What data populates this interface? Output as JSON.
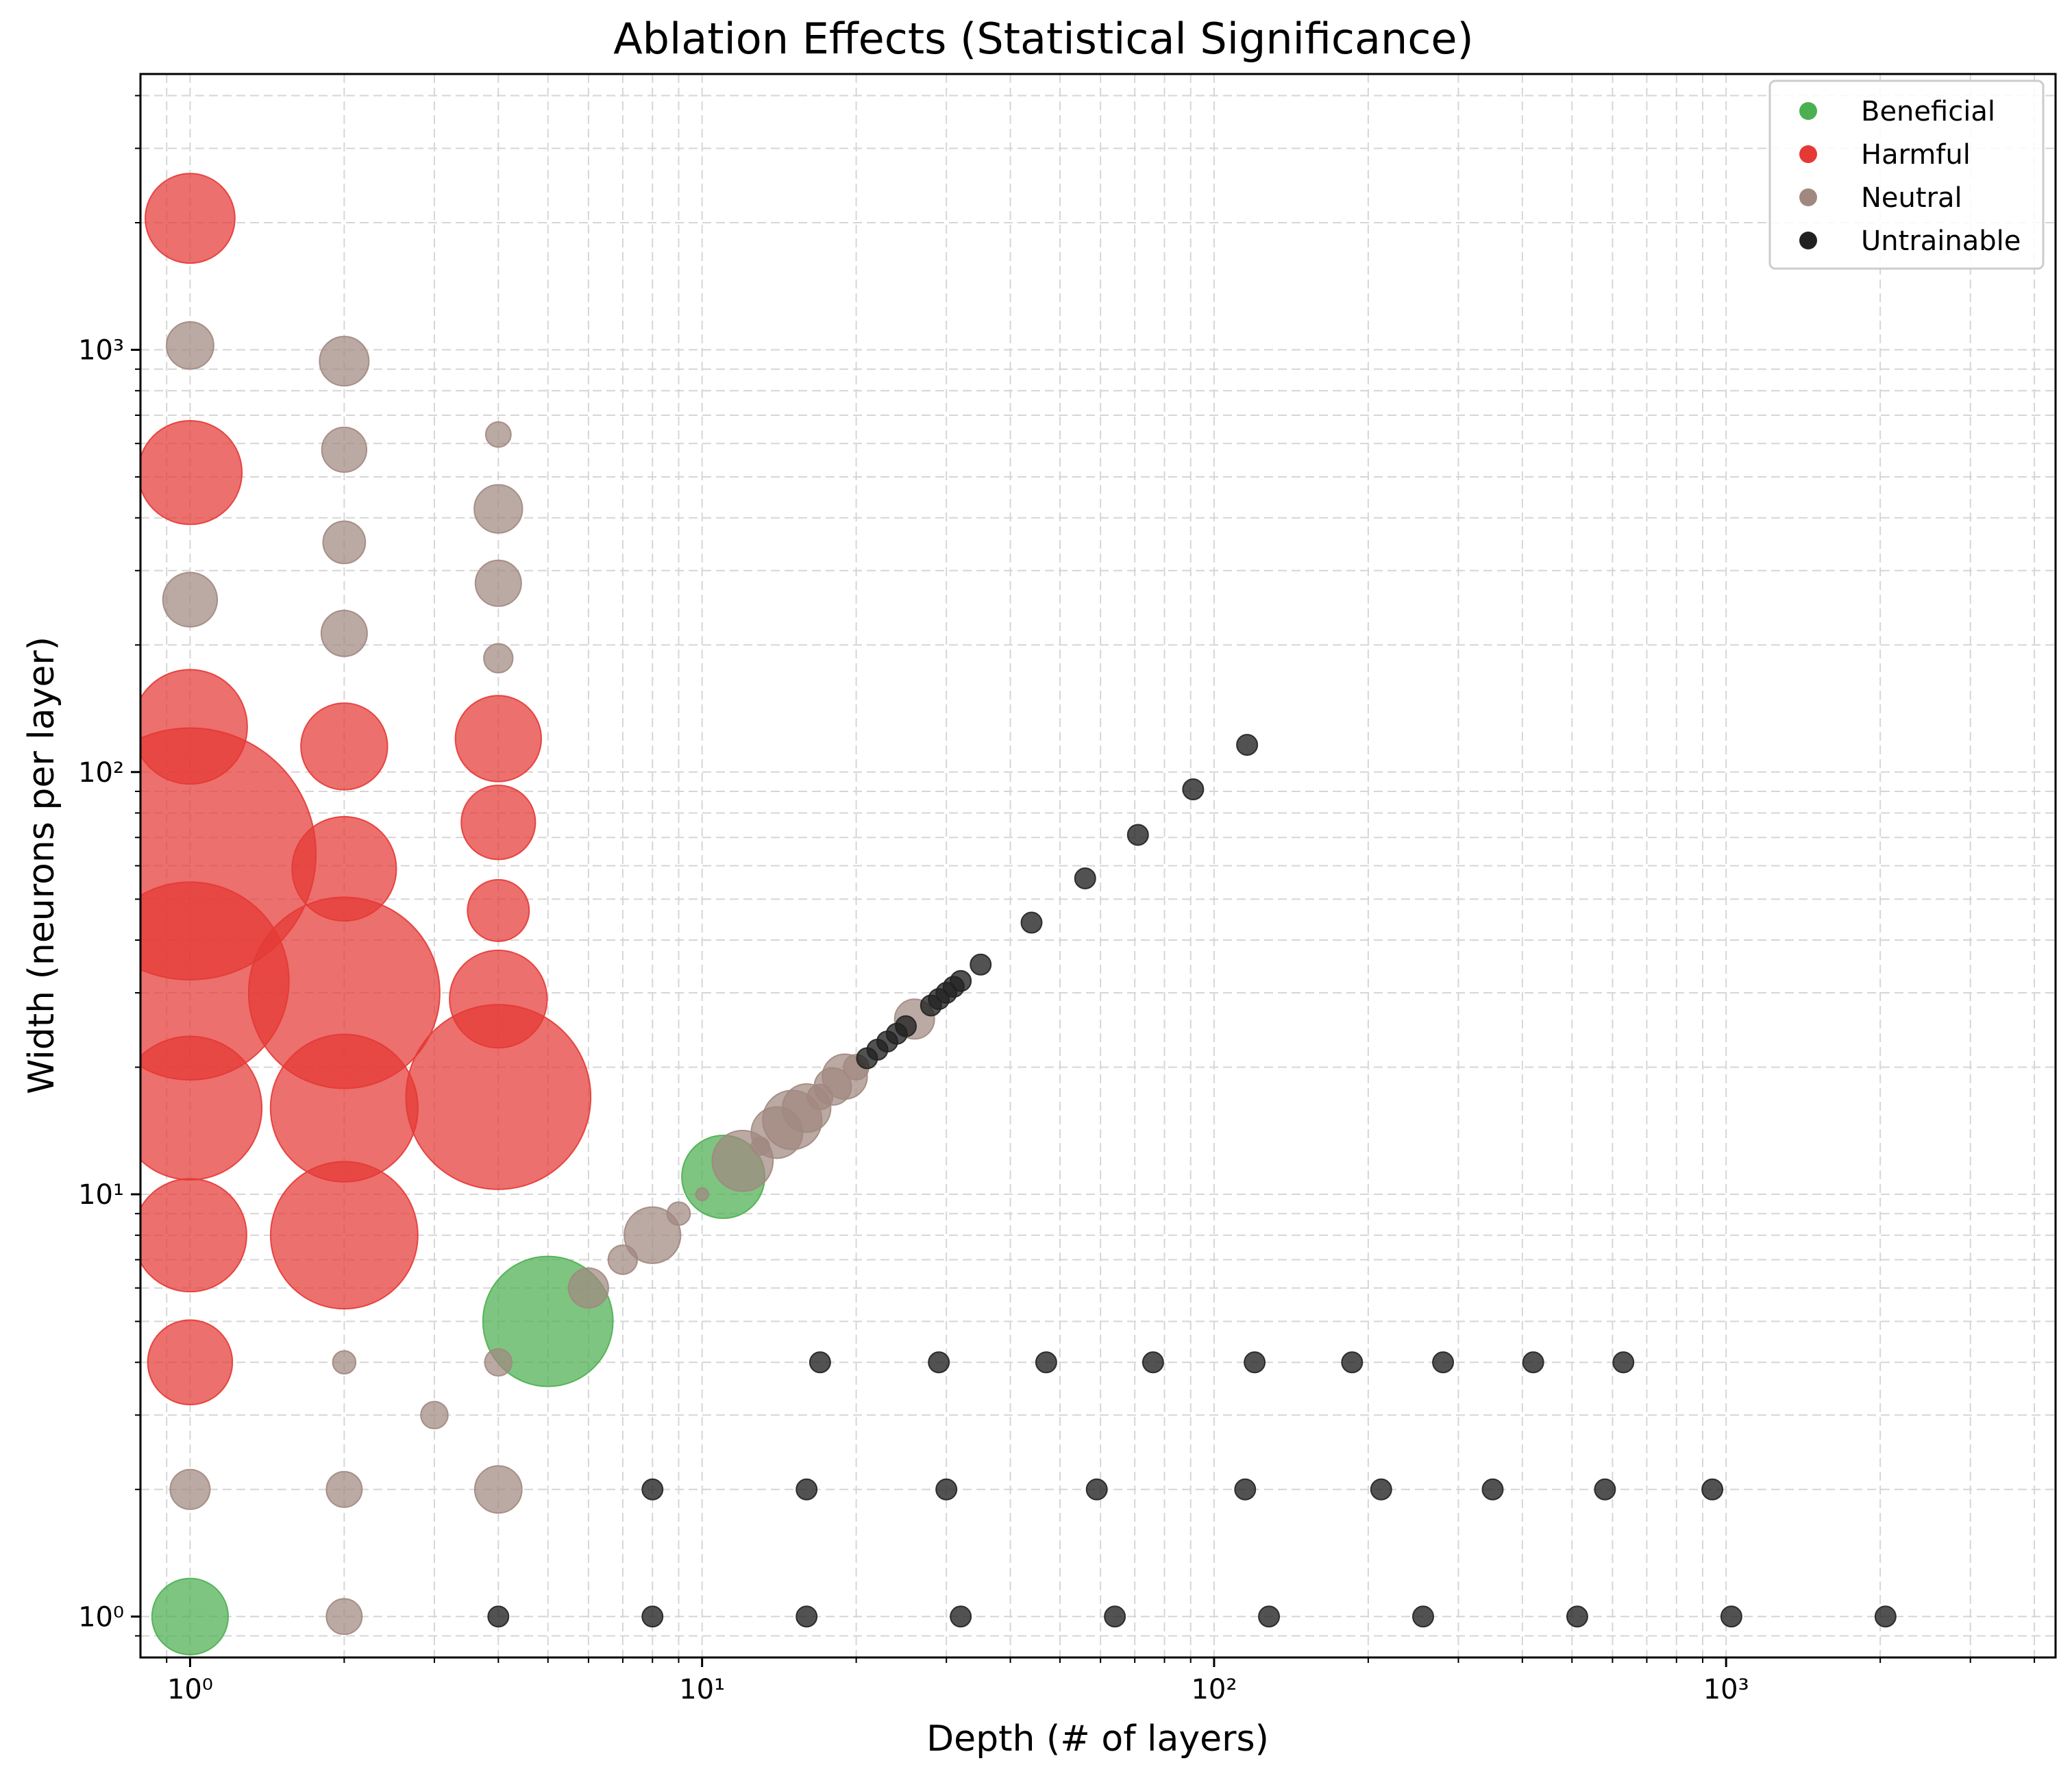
{
  "chart_data": {
    "type": "scatter",
    "title": "Ablation Effects (Statistical Significance)",
    "xlabel": "Depth (# of layers)",
    "ylabel": "Width (neurons per layer)",
    "xscale": "log",
    "yscale": "log",
    "xlim": [
      0.8,
      4400
    ],
    "ylim": [
      0.8,
      4500
    ],
    "grid": true,
    "x_ticks": [
      {
        "value": 1,
        "label": "10⁰"
      },
      {
        "value": 10,
        "label": "10¹"
      },
      {
        "value": 100,
        "label": "10²"
      },
      {
        "value": 1000,
        "label": "10³"
      }
    ],
    "y_ticks": [
      {
        "value": 1,
        "label": "10⁰"
      },
      {
        "value": 10,
        "label": "10¹"
      },
      {
        "value": 100,
        "label": "10²"
      },
      {
        "value": 1000,
        "label": "10³"
      }
    ],
    "legend_position": "top-right",
    "size_encoding": "marker area reflects statistical significance (relative units)",
    "series": [
      {
        "name": "Beneficial",
        "color": "#4caf50",
        "points": [
          {
            "x": 1,
            "y": 1,
            "s": 5.5
          },
          {
            "x": 5,
            "y": 5,
            "s": 16
          },
          {
            "x": 11,
            "y": 11,
            "s": 6.5
          }
        ]
      },
      {
        "name": "Harmful",
        "color": "#e53935",
        "points": [
          {
            "x": 1,
            "y": 2048,
            "s": 7.6
          },
          {
            "x": 1,
            "y": 512,
            "s": 10.2
          },
          {
            "x": 1,
            "y": 128,
            "s": 12.4
          },
          {
            "x": 1,
            "y": 64,
            "s": 60
          },
          {
            "x": 1,
            "y": 32,
            "s": 37
          },
          {
            "x": 1,
            "y": 16,
            "s": 19.5
          },
          {
            "x": 1,
            "y": 8,
            "s": 12.1
          },
          {
            "x": 1,
            "y": 4,
            "s": 6.8
          },
          {
            "x": 2,
            "y": 115,
            "s": 7.1
          },
          {
            "x": 2,
            "y": 59,
            "s": 10.3
          },
          {
            "x": 2,
            "y": 30,
            "s": 34.6
          },
          {
            "x": 2,
            "y": 16,
            "s": 20.6
          },
          {
            "x": 2,
            "y": 8,
            "s": 20.5
          },
          {
            "x": 4,
            "y": 120,
            "s": 7.0
          },
          {
            "x": 4,
            "y": 76,
            "s": 5.2
          },
          {
            "x": 4,
            "y": 47,
            "s": 3.6
          },
          {
            "x": 4,
            "y": 29,
            "s": 9.0
          },
          {
            "x": 4,
            "y": 17,
            "s": 32.3
          }
        ]
      },
      {
        "name": "Neutral",
        "color": "#a1887f",
        "points": [
          {
            "x": 1,
            "y": 1024,
            "s": 2.1
          },
          {
            "x": 1,
            "y": 256,
            "s": 2.8
          },
          {
            "x": 1,
            "y": 2,
            "s": 1.5
          },
          {
            "x": 2,
            "y": 940,
            "s": 2.3
          },
          {
            "x": 2,
            "y": 580,
            "s": 1.9
          },
          {
            "x": 2,
            "y": 350,
            "s": 1.7
          },
          {
            "x": 2,
            "y": 213,
            "s": 2.0
          },
          {
            "x": 2,
            "y": 4,
            "s": 0.5
          },
          {
            "x": 2,
            "y": 2,
            "s": 1.2
          },
          {
            "x": 2,
            "y": 1,
            "s": 1.2
          },
          {
            "x": 4,
            "y": 630,
            "s": 0.6
          },
          {
            "x": 4,
            "y": 420,
            "s": 2.2
          },
          {
            "x": 4,
            "y": 280,
            "s": 2.0
          },
          {
            "x": 4,
            "y": 186,
            "s": 0.8
          },
          {
            "x": 4,
            "y": 4,
            "s": 0.7
          },
          {
            "x": 4,
            "y": 2,
            "s": 2.1
          },
          {
            "x": 3,
            "y": 3,
            "s": 0.7
          },
          {
            "x": 6,
            "y": 6,
            "s": 1.5
          },
          {
            "x": 7,
            "y": 7,
            "s": 0.8
          },
          {
            "x": 8,
            "y": 8,
            "s": 3.0
          },
          {
            "x": 9,
            "y": 9,
            "s": 0.5
          },
          {
            "x": 10,
            "y": 10,
            "s": 0.15
          },
          {
            "x": 12,
            "y": 12,
            "s": 3.5
          },
          {
            "x": 13,
            "y": 13,
            "s": 0.3
          },
          {
            "x": 14,
            "y": 14,
            "s": 2.5
          },
          {
            "x": 15,
            "y": 15,
            "s": 3.3
          },
          {
            "x": 16,
            "y": 16,
            "s": 2.2
          },
          {
            "x": 17,
            "y": 17,
            "s": 0.6
          },
          {
            "x": 18,
            "y": 18,
            "s": 1.3
          },
          {
            "x": 19,
            "y": 19,
            "s": 1.9
          },
          {
            "x": 20,
            "y": 20,
            "s": 0.6
          },
          {
            "x": 26,
            "y": 26,
            "s": 1.5
          }
        ]
      },
      {
        "name": "Untrainable",
        "color": "#212121",
        "points": [
          {
            "x": 4,
            "y": 1,
            "s": 0.4
          },
          {
            "x": 8,
            "y": 1,
            "s": 0.4
          },
          {
            "x": 16,
            "y": 1,
            "s": 0.4
          },
          {
            "x": 32,
            "y": 1,
            "s": 0.4
          },
          {
            "x": 64,
            "y": 1,
            "s": 0.4
          },
          {
            "x": 128,
            "y": 1,
            "s": 0.4
          },
          {
            "x": 256,
            "y": 1,
            "s": 0.4
          },
          {
            "x": 512,
            "y": 1,
            "s": 0.4
          },
          {
            "x": 1024,
            "y": 1,
            "s": 0.4
          },
          {
            "x": 2048,
            "y": 1,
            "s": 0.4
          },
          {
            "x": 8,
            "y": 2,
            "s": 0.4
          },
          {
            "x": 16,
            "y": 2,
            "s": 0.4
          },
          {
            "x": 30,
            "y": 2,
            "s": 0.4
          },
          {
            "x": 59,
            "y": 2,
            "s": 0.4
          },
          {
            "x": 115,
            "y": 2,
            "s": 0.4
          },
          {
            "x": 212,
            "y": 2,
            "s": 0.4
          },
          {
            "x": 350,
            "y": 2,
            "s": 0.4
          },
          {
            "x": 580,
            "y": 2,
            "s": 0.4
          },
          {
            "x": 940,
            "y": 2,
            "s": 0.4
          },
          {
            "x": 17,
            "y": 4,
            "s": 0.4
          },
          {
            "x": 29,
            "y": 4,
            "s": 0.4
          },
          {
            "x": 47,
            "y": 4,
            "s": 0.4
          },
          {
            "x": 76,
            "y": 4,
            "s": 0.4
          },
          {
            "x": 120,
            "y": 4,
            "s": 0.4
          },
          {
            "x": 186,
            "y": 4,
            "s": 0.4
          },
          {
            "x": 280,
            "y": 4,
            "s": 0.4
          },
          {
            "x": 420,
            "y": 4,
            "s": 0.4
          },
          {
            "x": 630,
            "y": 4,
            "s": 0.4
          },
          {
            "x": 21,
            "y": 21,
            "s": 0.4
          },
          {
            "x": 22,
            "y": 22,
            "s": 0.4
          },
          {
            "x": 23,
            "y": 23,
            "s": 0.4
          },
          {
            "x": 24,
            "y": 24,
            "s": 0.4
          },
          {
            "x": 25,
            "y": 25,
            "s": 0.4
          },
          {
            "x": 28,
            "y": 28,
            "s": 0.4
          },
          {
            "x": 29,
            "y": 29,
            "s": 0.4
          },
          {
            "x": 30,
            "y": 30,
            "s": 0.4
          },
          {
            "x": 31,
            "y": 31,
            "s": 0.4
          },
          {
            "x": 32,
            "y": 32,
            "s": 0.4
          },
          {
            "x": 35,
            "y": 35,
            "s": 0.4
          },
          {
            "x": 44,
            "y": 44,
            "s": 0.4
          },
          {
            "x": 56,
            "y": 56,
            "s": 0.4
          },
          {
            "x": 71,
            "y": 71,
            "s": 0.4
          },
          {
            "x": 91,
            "y": 91,
            "s": 0.4
          },
          {
            "x": 116,
            "y": 116,
            "s": 0.4
          }
        ]
      }
    ]
  }
}
